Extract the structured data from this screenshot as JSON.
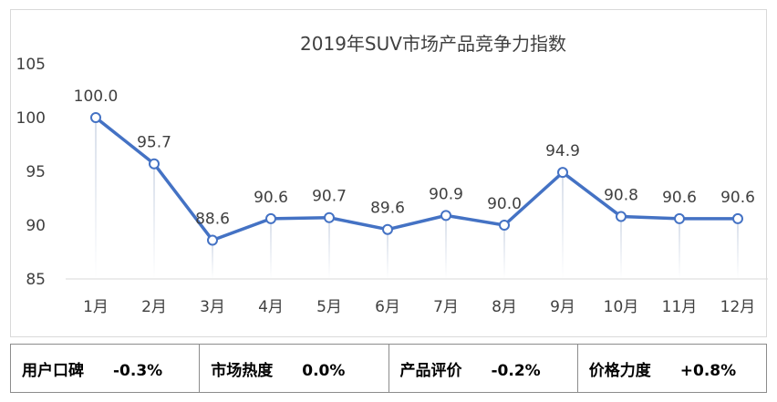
{
  "chart_data": {
    "type": "line",
    "title": "2019年SUV市场产品竞争力指数",
    "xlabel": "",
    "ylabel": "",
    "categories": [
      "1月",
      "2月",
      "3月",
      "4月",
      "5月",
      "6月",
      "7月",
      "8月",
      "9月",
      "10月",
      "11月",
      "12月"
    ],
    "series": [
      {
        "values": [
          100.0,
          95.7,
          88.6,
          90.6,
          90.7,
          89.6,
          90.9,
          90.0,
          94.9,
          90.8,
          90.6,
          90.6
        ]
      }
    ],
    "data_labels": [
      "100.0",
      "95.7",
      "88.6",
      "90.6",
      "90.7",
      "89.6",
      "90.9",
      "90.0",
      "94.9",
      "90.8",
      "90.6",
      "90.6"
    ],
    "yticks": [
      "105",
      "100",
      "95",
      "90",
      "85"
    ],
    "ylim": [
      85,
      105
    ],
    "grid": false,
    "drop_lines": true,
    "legend": "none",
    "line_color": "#4472C4"
  },
  "metrics": [
    {
      "label": "用户口碑",
      "value": "-0.3%"
    },
    {
      "label": "市场热度",
      "value": "0.0%"
    },
    {
      "label": "产品评价",
      "value": "-0.2%"
    },
    {
      "label": "价格力度",
      "value": "+0.8%"
    }
  ]
}
